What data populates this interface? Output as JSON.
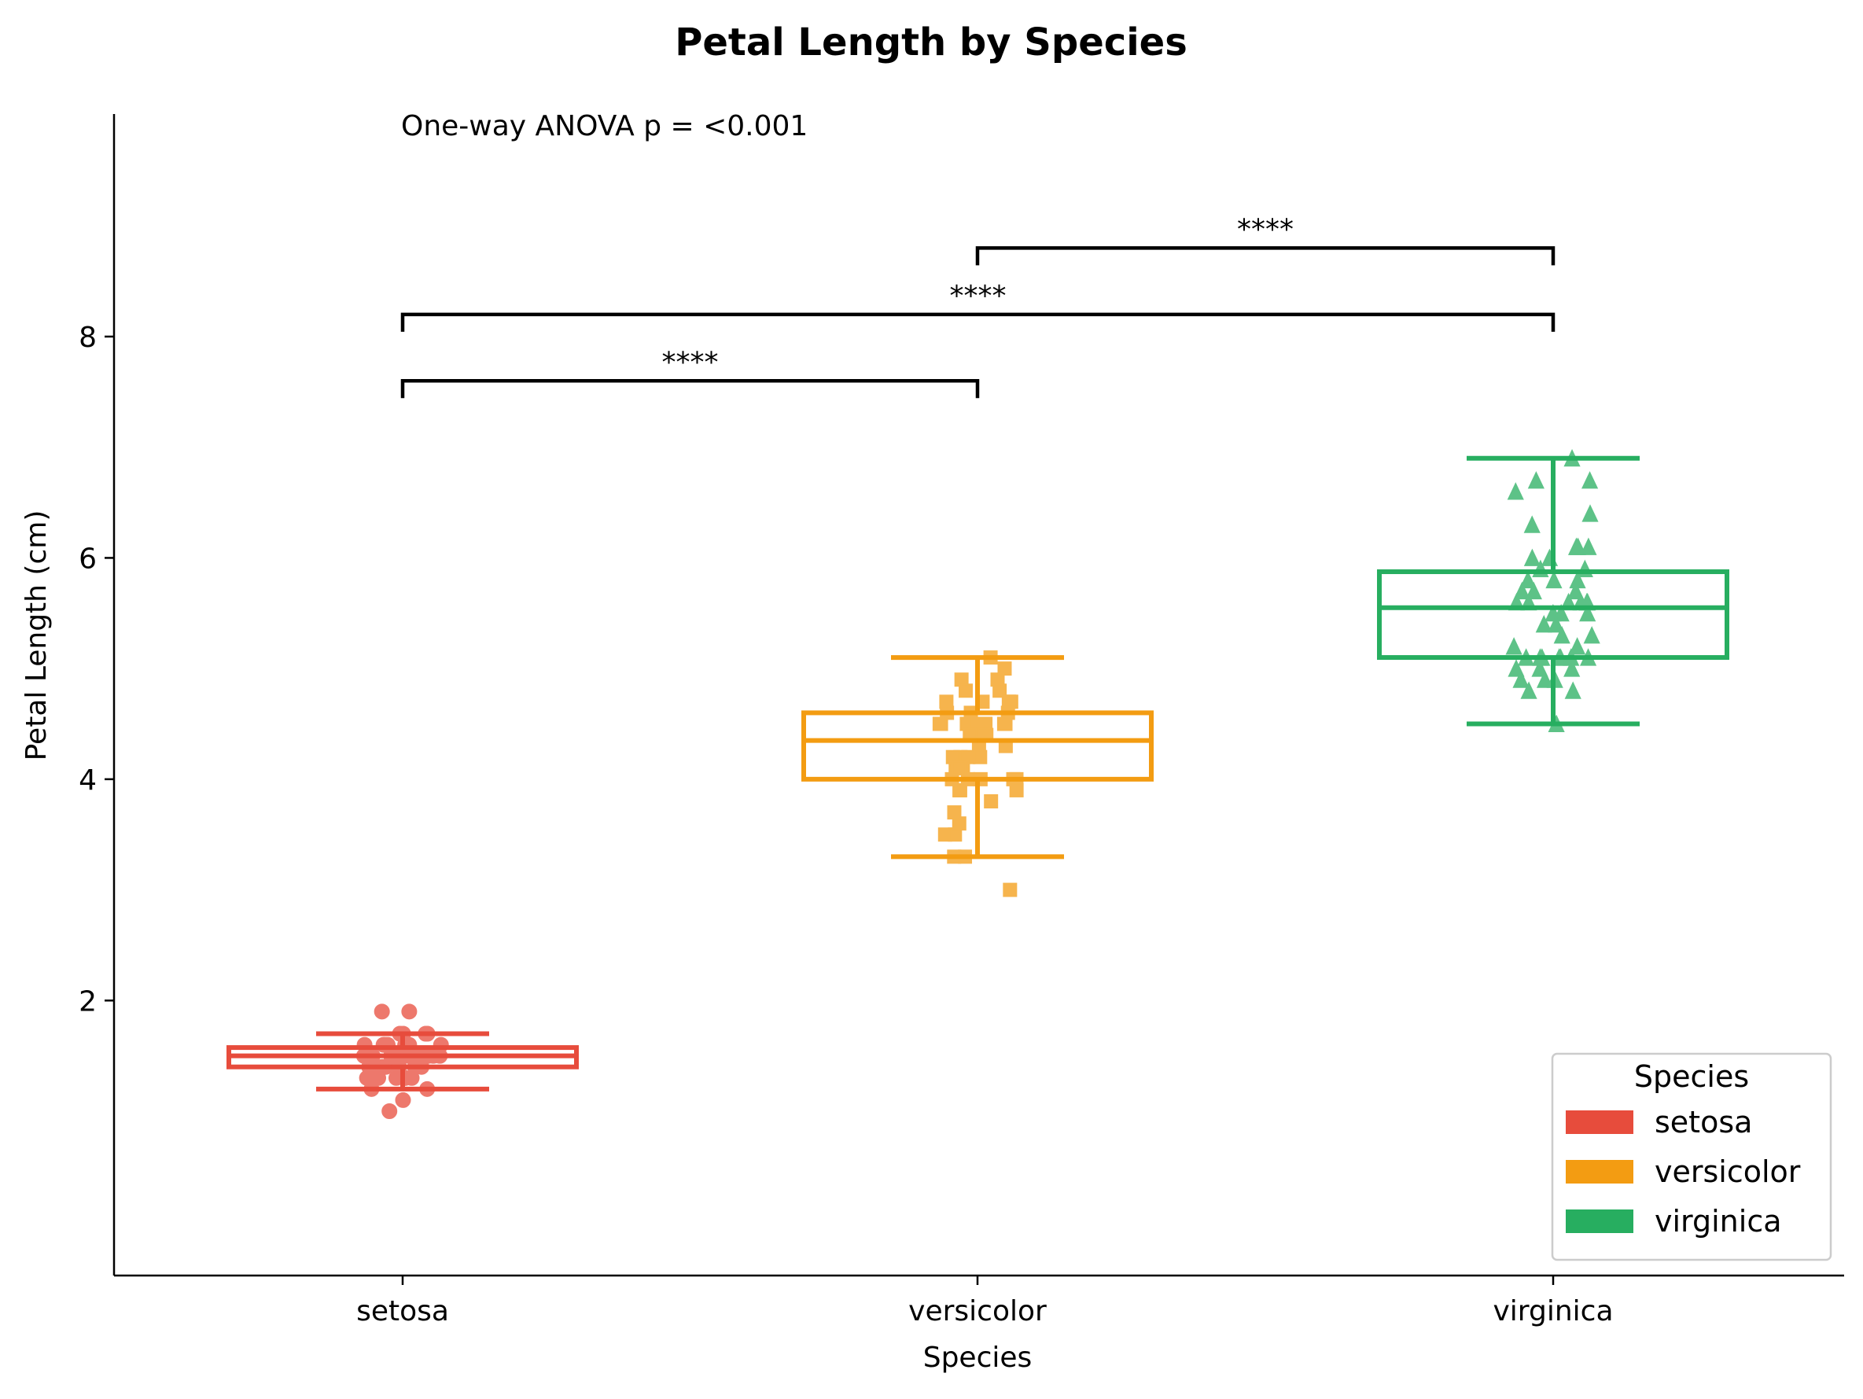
{
  "chart_data": {
    "type": "box",
    "title": "Petal Length by Species",
    "xlabel": "Species",
    "ylabel": "Petal Length (cm)",
    "categories": [
      "setosa",
      "versicolor",
      "virginica"
    ],
    "ylim": [
      0.7,
      9.7
    ],
    "yticks": [
      2,
      4,
      6,
      8
    ],
    "grid": false,
    "annotation": "One-way ANOVA p = <0.001",
    "colors": {
      "setosa": "#e74c3c",
      "versicolor": "#f39c12",
      "virginica": "#27ae60"
    },
    "boxes": [
      {
        "name": "setosa",
        "whisker_low": 1.2,
        "q1": 1.4,
        "median": 1.5,
        "q3": 1.575,
        "whisker_high": 1.7,
        "marker": "circle"
      },
      {
        "name": "versicolor",
        "whisker_low": 3.3,
        "q1": 4.0,
        "median": 4.35,
        "q3": 4.6,
        "whisker_high": 5.1,
        "marker": "square"
      },
      {
        "name": "virginica",
        "whisker_low": 4.5,
        "q1": 5.1,
        "median": 5.55,
        "q3": 5.875,
        "whisker_high": 6.9,
        "marker": "triangle"
      }
    ],
    "points": {
      "setosa": [
        1.4,
        1.4,
        1.3,
        1.5,
        1.4,
        1.7,
        1.4,
        1.5,
        1.4,
        1.5,
        1.5,
        1.6,
        1.4,
        1.1,
        1.2,
        1.5,
        1.3,
        1.4,
        1.7,
        1.5,
        1.7,
        1.5,
        1.0,
        1.7,
        1.9,
        1.6,
        1.6,
        1.5,
        1.4,
        1.6,
        1.6,
        1.5,
        1.5,
        1.4,
        1.5,
        1.2,
        1.3,
        1.4,
        1.3,
        1.5,
        1.3,
        1.3,
        1.3,
        1.6,
        1.9,
        1.4,
        1.6,
        1.4,
        1.5,
        1.4
      ],
      "versicolor": [
        4.7,
        4.5,
        4.9,
        4.0,
        4.6,
        4.5,
        4.7,
        3.3,
        4.6,
        3.9,
        3.5,
        4.2,
        4.0,
        4.7,
        3.6,
        4.4,
        4.5,
        4.1,
        4.5,
        3.9,
        4.8,
        4.0,
        4.9,
        4.7,
        4.3,
        4.4,
        4.8,
        5.0,
        4.5,
        3.5,
        3.8,
        3.7,
        3.9,
        5.1,
        4.5,
        4.5,
        4.7,
        4.4,
        4.1,
        4.0,
        4.4,
        4.6,
        4.0,
        3.3,
        4.2,
        4.2,
        4.2,
        4.3,
        3.0,
        4.1
      ],
      "virginica": [
        6.0,
        5.1,
        5.9,
        5.6,
        5.8,
        6.6,
        4.5,
        6.3,
        5.8,
        6.1,
        5.1,
        5.3,
        5.5,
        5.0,
        5.1,
        5.3,
        5.5,
        6.7,
        6.9,
        5.0,
        5.7,
        4.9,
        6.7,
        4.9,
        5.7,
        6.0,
        4.8,
        4.9,
        5.6,
        5.8,
        6.1,
        6.4,
        5.6,
        5.1,
        5.6,
        6.1,
        5.6,
        5.5,
        4.8,
        5.4,
        5.6,
        5.1,
        5.1,
        5.9,
        5.7,
        5.2,
        5.0,
        5.2,
        5.4,
        5.1
      ]
    },
    "significance": [
      {
        "from": "setosa",
        "to": "versicolor",
        "label": "****",
        "y": 7.6
      },
      {
        "from": "setosa",
        "to": "virginica",
        "label": "****",
        "y": 8.2
      },
      {
        "from": "versicolor",
        "to": "virginica",
        "label": "****",
        "y": 8.8
      }
    ],
    "legend": {
      "title": "Species",
      "position": "lower-right",
      "entries": [
        "setosa",
        "versicolor",
        "virginica"
      ]
    }
  }
}
